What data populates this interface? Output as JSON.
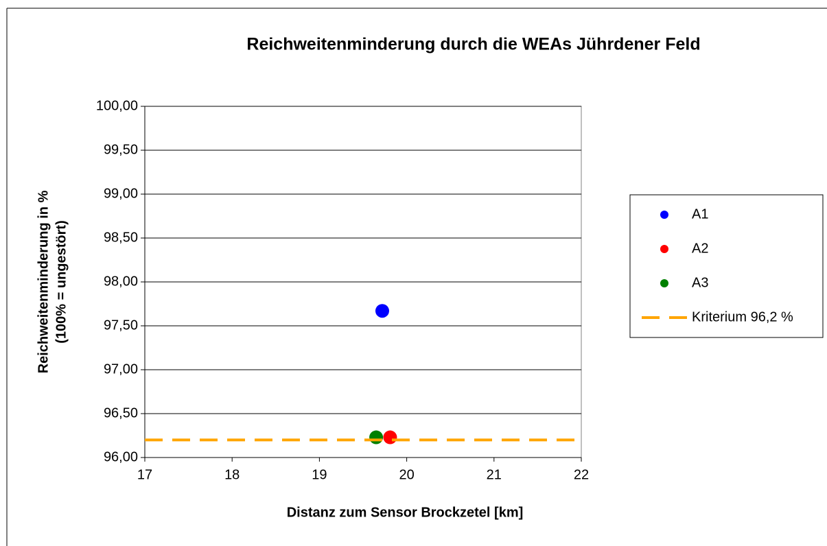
{
  "chart_data": {
    "type": "scatter",
    "title": "Reichweitenminderung durch die WEAs Jührdener Feld",
    "xlabel": "Distanz zum Sensor Brockzetel [km]",
    "ylabel": [
      "Reichweitenminderung in %",
      "(100% = ungestört)"
    ],
    "xlim": [
      17,
      22
    ],
    "xticks": [
      17,
      18,
      19,
      20,
      21,
      22
    ],
    "ylim": [
      96,
      100
    ],
    "yticks": [
      {
        "value": 96,
        "label": "96,00"
      },
      {
        "value": 96.5,
        "label": "96,50"
      },
      {
        "value": 97,
        "label": "97,00"
      },
      {
        "value": 97.5,
        "label": "97,50"
      },
      {
        "value": 98,
        "label": "98,00"
      },
      {
        "value": 98.5,
        "label": "98,50"
      },
      {
        "value": 99,
        "label": "99,00"
      },
      {
        "value": 99.5,
        "label": "99,50"
      },
      {
        "value": 100,
        "label": "100,00"
      }
    ],
    "grid": true,
    "legend": "right",
    "series": [
      {
        "name": "A1",
        "color": "#0000ff",
        "x": [
          19.72
        ],
        "values": [
          97.67
        ]
      },
      {
        "name": "A2",
        "color": "#ff0000",
        "x": [
          19.81
        ],
        "values": [
          96.23
        ]
      },
      {
        "name": "A3",
        "color": "#008000",
        "x": [
          19.65
        ],
        "values": [
          96.23
        ]
      },
      {
        "name": "Kriterium 96,2 %",
        "type": "line",
        "color": "#ffa500",
        "x": [
          17,
          22
        ],
        "values": [
          96.2,
          96.2
        ]
      }
    ]
  }
}
